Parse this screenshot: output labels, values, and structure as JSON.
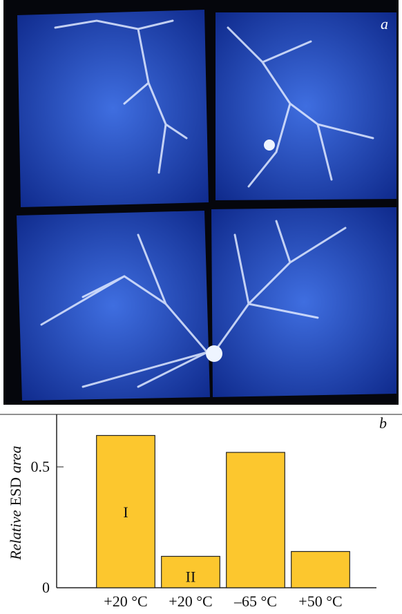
{
  "panel_a": {
    "label": "a"
  },
  "chart_data": {
    "type": "bar",
    "panel_label": "b",
    "ylabel_parts": [
      "Relative",
      "ESD",
      "area"
    ],
    "categories": [
      "+20 °C",
      "+20 °C",
      "–65 °C",
      "+50 °C"
    ],
    "values": [
      0.63,
      0.13,
      0.56,
      0.15
    ],
    "bar_labels": [
      "I",
      "II",
      null,
      null
    ],
    "color": "#fcc72e",
    "ylim": [
      0,
      0.7
    ],
    "yticks": [
      0,
      0.5
    ]
  }
}
